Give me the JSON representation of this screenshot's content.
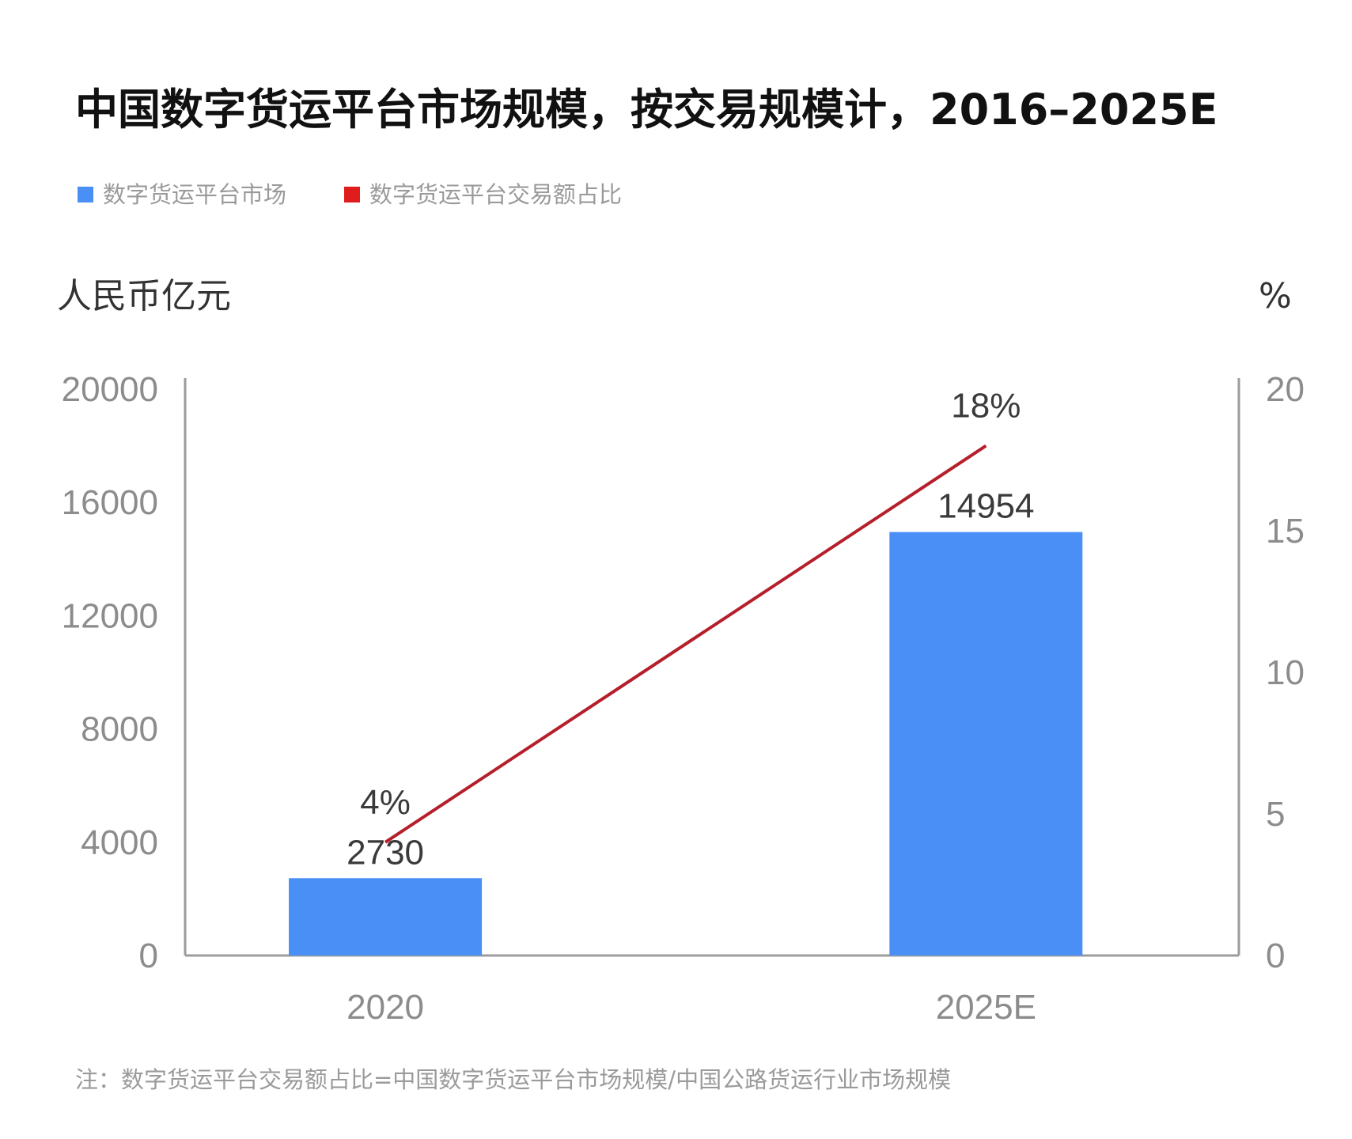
{
  "chart_data": {
    "type": "bar",
    "title": "中国数字货运平台市场规模，按交易规模计，2016–2025E",
    "categories": [
      "2020",
      "2025E"
    ],
    "series": [
      {
        "name": "数字货运平台市场",
        "type": "bar",
        "axis": "left",
        "color": "#4a8ff5",
        "values": [
          2730,
          14954
        ],
        "labels": [
          "2730",
          "14954"
        ]
      },
      {
        "name": "数字货运平台交易额占比",
        "type": "line",
        "axis": "right",
        "color": "#b51f2b",
        "values": [
          4,
          18
        ],
        "labels": [
          "4%",
          "18%"
        ]
      }
    ],
    "ylabel": "人民币亿元",
    "y2label": "%",
    "ylim": [
      0,
      20000
    ],
    "y2lim": [
      0,
      20
    ],
    "yticks": [
      "0",
      "4000",
      "8000",
      "12000",
      "16000",
      "20000"
    ],
    "y2ticks": [
      "0",
      "5",
      "10",
      "15",
      "20"
    ],
    "legend_position": "top-left",
    "grid": false,
    "note": "注：数字货运平台交易额占比=中国数字货运平台市场规模/中国公路货运行业市场规模"
  }
}
